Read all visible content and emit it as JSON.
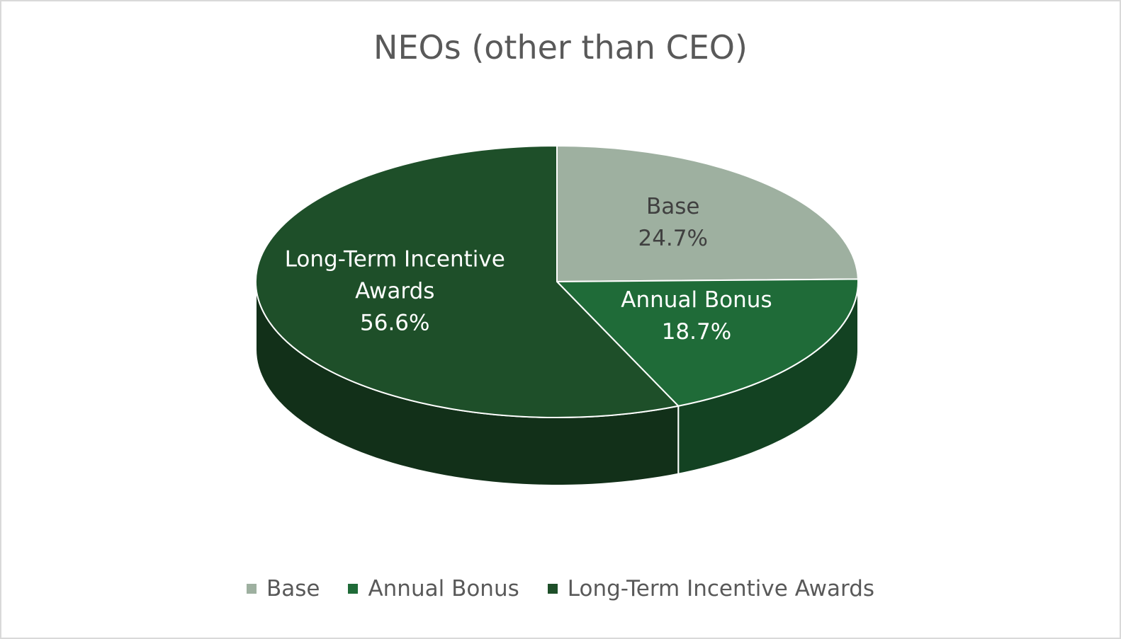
{
  "chart_data": {
    "type": "pie",
    "title": "NEOs (other than CEO)",
    "categories": [
      "Base",
      "Annual Bonus",
      "Long-Term Incentive Awards"
    ],
    "values": [
      24.7,
      18.7,
      56.6
    ],
    "value_labels": [
      "24.7%",
      "18.7%",
      "56.6%"
    ],
    "colors": [
      "#9eb0a0",
      "#1f6b38",
      "#1e4f29"
    ],
    "legend": "bottom"
  }
}
